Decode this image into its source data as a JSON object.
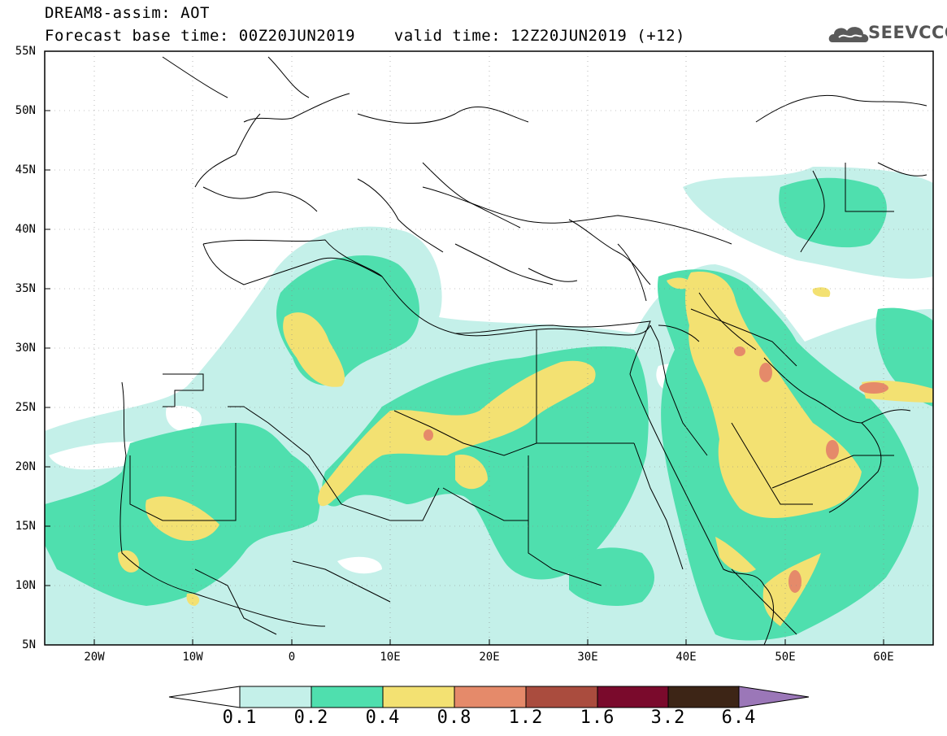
{
  "header": {
    "title_line1": "DREAM8-assim: AOT",
    "title_line2": "Forecast base time: 00Z20JUN2019    valid time: 12Z20JUN2019 (+12)",
    "logo_text": "SEEVCCC"
  },
  "map": {
    "lat_labels": [
      "55N",
      "50N",
      "45N",
      "40N",
      "35N",
      "30N",
      "25N",
      "20N",
      "15N",
      "10N",
      "5N"
    ],
    "lon_labels": [
      "20W",
      "10W",
      "0",
      "10E",
      "20E",
      "30E",
      "40E",
      "50E",
      "60E"
    ],
    "colors": {
      "land_bg": "#ffffff",
      "aot_0_1": "#c4f0e9",
      "aot_0_2": "#4fdfae",
      "aot_0_4": "#f3e172",
      "aot_0_8": "#e58a6a",
      "aot_1_2": "#aa4c3e",
      "aot_1_6": "#7a0a2c",
      "aot_3_2": "#3d2516",
      "aot_6_4": "#9b77b8"
    }
  },
  "colorbar": {
    "labels": [
      "0.1",
      "0.2",
      "0.4",
      "0.8",
      "1.2",
      "1.6",
      "3.2",
      "6.4"
    ],
    "colors": [
      "#c4f0e9",
      "#4fdfae",
      "#f3e172",
      "#e58a6a",
      "#aa4c3e",
      "#7a0a2c",
      "#3d2516",
      "#9b77b8"
    ]
  }
}
